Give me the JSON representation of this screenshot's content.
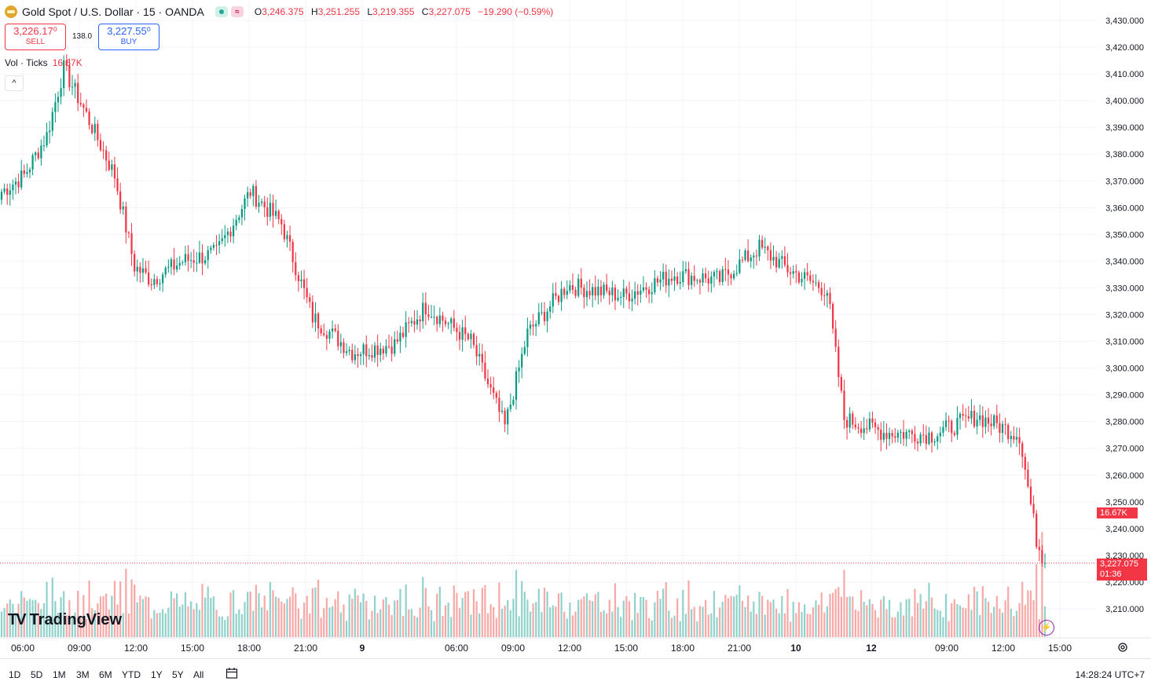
{
  "header": {
    "title": "Gold Spot / U.S. Dollar · 15 · OANDA",
    "ohlc": {
      "o_label": "O",
      "o": "3,246.375",
      "h_label": "H",
      "h": "3,251.255",
      "l_label": "L",
      "l": "3,219.355",
      "c_label": "C",
      "c": "3,227.075",
      "change": "−19.290 (−0.59%)"
    }
  },
  "trade": {
    "sell_price": "3,226.17⁰",
    "sell_label": "SELL",
    "spread": "138.0",
    "buy_price": "3,227.55⁰",
    "buy_label": "BUY"
  },
  "volume_indicator": {
    "label": "Vol · Ticks",
    "value": "16.67K"
  },
  "brand": "TradingView",
  "badges": {
    "volume": "16.67K",
    "price": "3,227.075",
    "countdown": "01:36"
  },
  "range_buttons": [
    "1D",
    "5D",
    "1M",
    "3M",
    "6M",
    "YTD",
    "1Y",
    "5Y",
    "All"
  ],
  "clock": "14:28:24 UTC+7",
  "colors": {
    "up": "#089981",
    "down": "#f23645",
    "up_vol": "#92d2cc",
    "down_vol": "#f7a9a7",
    "grid": "#f0f3fa"
  },
  "chart_data": {
    "type": "candlestick",
    "y_axis": {
      "min": 3200,
      "max": 3435,
      "ticks": [
        3210,
        3220,
        3230,
        3240,
        3250,
        3260,
        3270,
        3280,
        3290,
        3300,
        3310,
        3320,
        3330,
        3340,
        3350,
        3360,
        3370,
        3380,
        3390,
        3400,
        3410,
        3420,
        3430
      ]
    },
    "x_labels": [
      "06:00",
      "09:00",
      "12:00",
      "15:00",
      "18:00",
      "21:00",
      "9",
      "06:00",
      "09:00",
      "12:00",
      "15:00",
      "18:00",
      "21:00",
      "10",
      "12",
      "09:00",
      "12:00",
      "15:00"
    ],
    "grid": true,
    "anchors_close": [
      [
        0,
        3366
      ],
      [
        8,
        3372
      ],
      [
        16,
        3387
      ],
      [
        22,
        3412
      ],
      [
        29,
        3397
      ],
      [
        40,
        3372
      ],
      [
        47,
        3338
      ],
      [
        53,
        3333
      ],
      [
        64,
        3340
      ],
      [
        76,
        3343
      ],
      [
        88,
        3366
      ],
      [
        99,
        3354
      ],
      [
        110,
        3319
      ],
      [
        124,
        3306
      ],
      [
        139,
        3309
      ],
      [
        150,
        3323
      ],
      [
        166,
        3310
      ],
      [
        178,
        3278
      ],
      [
        186,
        3313
      ],
      [
        200,
        3331
      ],
      [
        220,
        3327
      ],
      [
        238,
        3335
      ],
      [
        254,
        3333
      ],
      [
        268,
        3345
      ],
      [
        278,
        3337
      ],
      [
        292,
        3329
      ],
      [
        298,
        3281
      ],
      [
        312,
        3276
      ],
      [
        329,
        3275
      ],
      [
        345,
        3282
      ],
      [
        360,
        3275
      ],
      [
        366,
        3236
      ],
      [
        369,
        3227
      ]
    ],
    "volume_range": [
      0,
      35000
    ],
    "last": {
      "price": 3227.075,
      "volume": "16.67K"
    }
  }
}
